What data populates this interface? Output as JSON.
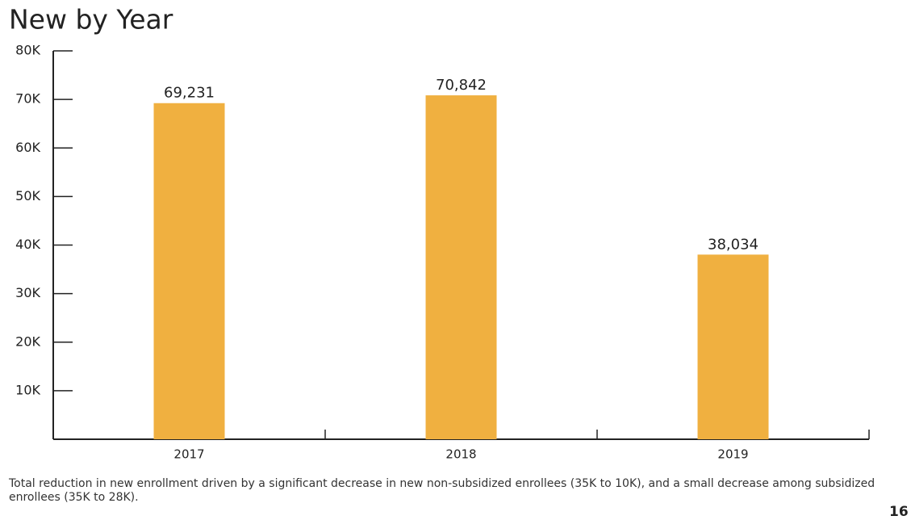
{
  "chart_data": {
    "type": "bar",
    "title": "New by Year",
    "categories": [
      "2017",
      "2018",
      "2019"
    ],
    "values": [
      69231,
      70842,
      38034
    ],
    "value_labels": [
      "69,231",
      "70,842",
      "38,034"
    ],
    "color": "#f0b040",
    "ylim": [
      0,
      80000
    ],
    "yticks": [
      {
        "value": 10000,
        "label": "10K"
      },
      {
        "value": 20000,
        "label": "20K"
      },
      {
        "value": 30000,
        "label": "30K"
      },
      {
        "value": 40000,
        "label": "40K"
      },
      {
        "value": 50000,
        "label": "50K"
      },
      {
        "value": 60000,
        "label": "60K"
      },
      {
        "value": 70000,
        "label": "70K"
      },
      {
        "value": 80000,
        "label": "80K"
      }
    ],
    "grid": false,
    "footnote": "Total reduction in new enrollment driven by a significant decrease in new non-subsidized enrollees (35K to 10K), and a small decrease among subsidized enrollees (35K to 28K).",
    "page_number": "16"
  }
}
